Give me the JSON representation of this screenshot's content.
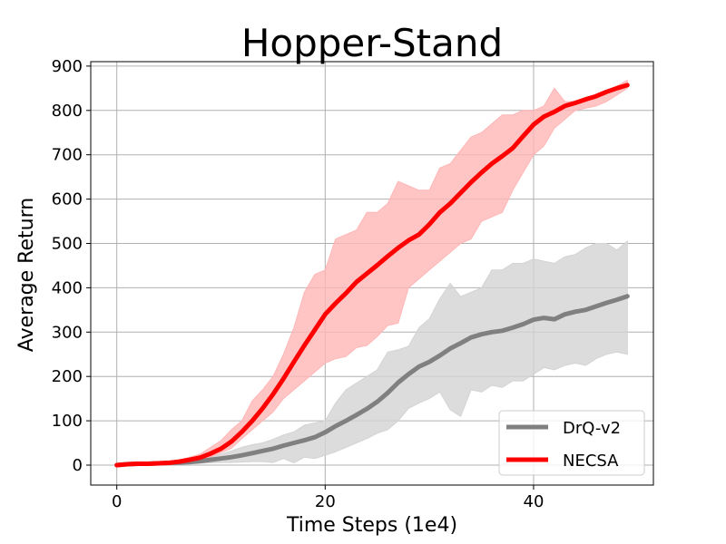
{
  "chart_data": {
    "type": "line",
    "title": "Hopper-Stand",
    "xlabel": "Time Steps (1e4)",
    "ylabel": "Average Return",
    "xlim": [
      -2.5,
      51.5
    ],
    "ylim": [
      -45,
      910
    ],
    "xticks": [
      0,
      20,
      40
    ],
    "yticks": [
      0,
      100,
      200,
      300,
      400,
      500,
      600,
      700,
      800,
      900
    ],
    "grid": true,
    "legend_position": "lower-right",
    "x": [
      0,
      1,
      2,
      3,
      4,
      5,
      6,
      7,
      8,
      9,
      10,
      11,
      12,
      13,
      14,
      15,
      16,
      17,
      18,
      19,
      20,
      21,
      22,
      23,
      24,
      25,
      26,
      27,
      28,
      29,
      30,
      31,
      32,
      33,
      34,
      35,
      36,
      37,
      38,
      39,
      40,
      41,
      42,
      43,
      44,
      45,
      46,
      47,
      48,
      49
    ],
    "series": [
      {
        "name": "DrQ-v2",
        "color": "#808080",
        "band_color": "#d3d3d3",
        "mean": [
          0,
          2,
          3,
          3,
          4,
          5,
          6,
          7,
          9,
          12,
          15,
          18,
          22,
          27,
          32,
          37,
          44,
          50,
          56,
          63,
          74,
          88,
          100,
          113,
          127,
          143,
          163,
          186,
          205,
          222,
          233,
          247,
          263,
          275,
          288,
          295,
          300,
          303,
          310,
          318,
          328,
          332,
          329,
          340,
          346,
          350,
          358,
          366,
          373,
          381
        ],
        "lower": [
          0,
          1,
          1,
          2,
          2,
          2,
          3,
          3,
          4,
          5,
          6,
          6,
          7,
          8,
          8,
          6,
          15,
          5,
          18,
          15,
          22,
          30,
          40,
          50,
          60,
          72,
          80,
          100,
          128,
          140,
          150,
          165,
          125,
          110,
          170,
          165,
          180,
          175,
          190,
          190,
          205,
          220,
          215,
          225,
          230,
          225,
          240,
          250,
          255,
          250
        ],
        "upper": [
          0,
          2,
          4,
          5,
          6,
          7,
          8,
          10,
          13,
          18,
          25,
          32,
          40,
          46,
          50,
          58,
          68,
          75,
          90,
          95,
          100,
          140,
          170,
          185,
          200,
          215,
          255,
          260,
          268,
          310,
          330,
          375,
          410,
          380,
          390,
          400,
          440,
          440,
          455,
          455,
          465,
          460,
          455,
          470,
          475,
          490,
          500,
          500,
          485,
          505
        ]
      },
      {
        "name": "NECSA",
        "color": "#ff0000",
        "band_color": "#ffb6b6",
        "mean": [
          0,
          2,
          3,
          3,
          4,
          5,
          8,
          12,
          17,
          26,
          37,
          53,
          75,
          100,
          128,
          160,
          195,
          233,
          270,
          305,
          340,
          365,
          388,
          413,
          432,
          451,
          471,
          490,
          507,
          520,
          543,
          570,
          590,
          614,
          638,
          660,
          680,
          697,
          715,
          742,
          768,
          786,
          797,
          810,
          817,
          825,
          832,
          842,
          850,
          857
        ],
        "lower": [
          0,
          1,
          1,
          1,
          2,
          3,
          4,
          6,
          10,
          18,
          28,
          38,
          60,
          80,
          100,
          120,
          150,
          170,
          190,
          210,
          230,
          240,
          245,
          265,
          270,
          290,
          315,
          320,
          400,
          420,
          440,
          460,
          480,
          500,
          510,
          550,
          560,
          570,
          620,
          660,
          700,
          720,
          760,
          780,
          800,
          805,
          810,
          820,
          835,
          850
        ],
        "upper": [
          0,
          3,
          5,
          6,
          7,
          8,
          12,
          18,
          25,
          40,
          55,
          80,
          100,
          145,
          170,
          200,
          250,
          310,
          390,
          430,
          440,
          510,
          520,
          530,
          570,
          570,
          590,
          640,
          630,
          620,
          620,
          670,
          680,
          710,
          740,
          750,
          770,
          790,
          790,
          800,
          800,
          810,
          850,
          820,
          820,
          830,
          835,
          845,
          855,
          868
        ]
      }
    ]
  }
}
